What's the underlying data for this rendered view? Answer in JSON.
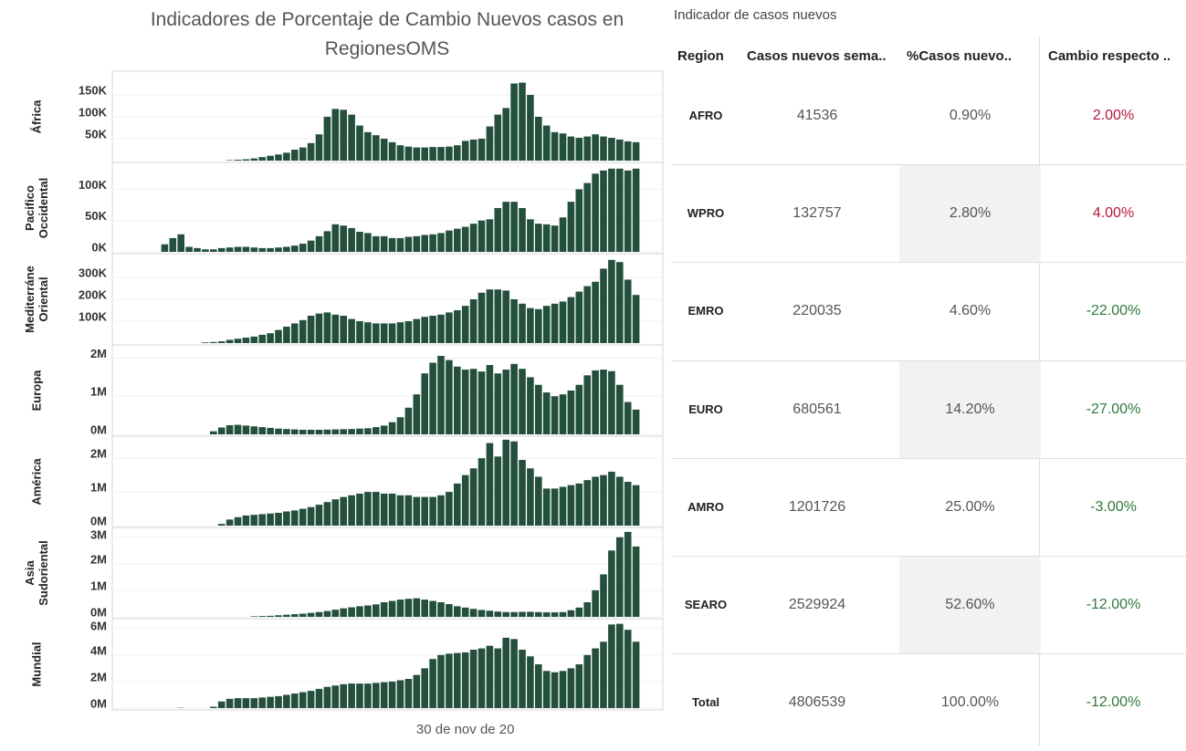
{
  "title": "Indicadores de Porcentaje de Cambio Nuevos casos en RegionesOMS",
  "chart_data": [
    {
      "type": "bar",
      "ylabel": "África",
      "color": "#234f3c",
      "ylim": [
        0,
        200000
      ],
      "yticks": [
        {
          "value": 50000,
          "label": "50K"
        },
        {
          "value": 100000,
          "label": "100K"
        },
        {
          "value": 150000,
          "label": "150K"
        }
      ],
      "values": [
        null,
        null,
        null,
        null,
        null,
        null,
        null,
        null,
        null,
        null,
        null,
        null,
        null,
        null,
        1000,
        2000,
        3000,
        5000,
        8000,
        11000,
        14000,
        18000,
        25000,
        30000,
        40000,
        60000,
        100000,
        118000,
        116000,
        105000,
        80000,
        65000,
        58000,
        50000,
        42000,
        35000,
        32000,
        30000,
        30000,
        31000,
        31000,
        32000,
        35000,
        45000,
        48000,
        50000,
        78000,
        105000,
        120000,
        176000,
        178000,
        150000,
        100000,
        80000,
        65000,
        62000,
        55000,
        52000,
        55000,
        60000,
        55000,
        52000,
        48000,
        44000,
        42000
      ]
    },
    {
      "type": "bar",
      "ylabel": "Pacifico Occidental",
      "color": "#234f3c",
      "ylim": [
        0,
        140000
      ],
      "yticks": [
        {
          "value": 0,
          "label": "0K"
        },
        {
          "value": 50000,
          "label": "50K"
        },
        {
          "value": 100000,
          "label": "100K"
        }
      ],
      "values": [
        null,
        null,
        null,
        null,
        null,
        null,
        12000,
        22000,
        28000,
        8000,
        6000,
        4000,
        4000,
        6000,
        7000,
        8000,
        8000,
        7000,
        6000,
        6000,
        7000,
        8000,
        10000,
        13000,
        18000,
        25000,
        33000,
        44000,
        42000,
        38000,
        32000,
        30000,
        25000,
        25000,
        22000,
        22000,
        24000,
        25000,
        27000,
        28000,
        30000,
        34000,
        37000,
        40000,
        45000,
        50000,
        52000,
        70000,
        80000,
        80000,
        70000,
        52000,
        45000,
        44000,
        42000,
        55000,
        80000,
        100000,
        110000,
        125000,
        130000,
        133000,
        133000,
        130000,
        133000
      ]
    },
    {
      "type": "bar",
      "ylabel": "Mediterráne Oriental",
      "color": "#234f3c",
      "ylim": [
        0,
        400000
      ],
      "yticks": [
        {
          "value": 100000,
          "label": "100K"
        },
        {
          "value": 200000,
          "label": "200K"
        },
        {
          "value": 300000,
          "label": "300K"
        }
      ],
      "values": [
        null,
        null,
        null,
        null,
        null,
        null,
        null,
        null,
        null,
        null,
        null,
        3000,
        5000,
        8000,
        15000,
        20000,
        25000,
        30000,
        38000,
        45000,
        60000,
        75000,
        90000,
        105000,
        125000,
        135000,
        140000,
        130000,
        125000,
        110000,
        100000,
        95000,
        90000,
        90000,
        90000,
        95000,
        100000,
        110000,
        120000,
        125000,
        130000,
        140000,
        150000,
        170000,
        200000,
        230000,
        245000,
        245000,
        240000,
        200000,
        180000,
        160000,
        155000,
        170000,
        180000,
        190000,
        210000,
        235000,
        260000,
        280000,
        340000,
        380000,
        370000,
        290000,
        220000
      ]
    },
    {
      "type": "bar",
      "ylabel": "Europa",
      "color": "#234f3c",
      "ylim": [
        0,
        2300000
      ],
      "yticks": [
        {
          "value": 0,
          "label": "0M"
        },
        {
          "value": 1000000,
          "label": "1M"
        },
        {
          "value": 2000000,
          "label": "2M"
        }
      ],
      "values": [
        null,
        null,
        null,
        null,
        null,
        null,
        null,
        null,
        null,
        null,
        null,
        null,
        80000,
        180000,
        240000,
        250000,
        230000,
        210000,
        190000,
        170000,
        150000,
        140000,
        130000,
        120000,
        120000,
        120000,
        125000,
        130000,
        135000,
        140000,
        150000,
        160000,
        190000,
        230000,
        320000,
        450000,
        700000,
        1050000,
        1600000,
        1880000,
        2060000,
        1950000,
        1780000,
        1700000,
        1720000,
        1650000,
        1820000,
        1600000,
        1700000,
        1850000,
        1720000,
        1500000,
        1300000,
        1100000,
        1000000,
        1050000,
        1150000,
        1300000,
        1550000,
        1680000,
        1700000,
        1660000,
        1300000,
        850000,
        650000
      ]
    },
    {
      "type": "bar",
      "ylabel": "América",
      "color": "#234f3c",
      "ylim": [
        0,
        2600000
      ],
      "yticks": [
        {
          "value": 0,
          "label": "0M"
        },
        {
          "value": 1000000,
          "label": "1M"
        },
        {
          "value": 2000000,
          "label": "2M"
        }
      ],
      "values": [
        null,
        null,
        null,
        null,
        null,
        null,
        null,
        null,
        null,
        null,
        null,
        null,
        null,
        50000,
        180000,
        250000,
        300000,
        320000,
        340000,
        360000,
        380000,
        420000,
        450000,
        500000,
        550000,
        620000,
        700000,
        780000,
        850000,
        900000,
        950000,
        1000000,
        1000000,
        950000,
        950000,
        900000,
        900000,
        850000,
        850000,
        850000,
        900000,
        1000000,
        1250000,
        1500000,
        1700000,
        2000000,
        2450000,
        2050000,
        2550000,
        2500000,
        1950000,
        1700000,
        1450000,
        1100000,
        1100000,
        1150000,
        1200000,
        1250000,
        1350000,
        1450000,
        1500000,
        1600000,
        1450000,
        1300000,
        1200000
      ]
    },
    {
      "type": "bar",
      "ylabel": "Asia Sudoriental",
      "color": "#234f3c",
      "ylim": [
        0,
        3300000
      ],
      "yticks": [
        {
          "value": 0,
          "label": "0M"
        },
        {
          "value": 1000000,
          "label": "1M"
        },
        {
          "value": 2000000,
          "label": "2M"
        },
        {
          "value": 3000000,
          "label": "3M"
        }
      ],
      "values": [
        null,
        null,
        null,
        null,
        null,
        null,
        null,
        null,
        null,
        null,
        null,
        null,
        null,
        null,
        null,
        null,
        null,
        20000,
        30000,
        40000,
        60000,
        80000,
        100000,
        120000,
        150000,
        180000,
        220000,
        270000,
        320000,
        360000,
        400000,
        430000,
        470000,
        550000,
        600000,
        650000,
        680000,
        700000,
        650000,
        600000,
        550000,
        480000,
        400000,
        350000,
        300000,
        260000,
        230000,
        200000,
        180000,
        180000,
        190000,
        190000,
        180000,
        170000,
        170000,
        180000,
        250000,
        350000,
        550000,
        1000000,
        1600000,
        2500000,
        3000000,
        3200000,
        2650000
      ]
    },
    {
      "type": "bar",
      "ylabel": "Mundial",
      "color": "#234f3c",
      "ylim": [
        0,
        6600000
      ],
      "yticks": [
        {
          "value": 0,
          "label": "0M"
        },
        {
          "value": 2000000,
          "label": "2M"
        },
        {
          "value": 4000000,
          "label": "4M"
        },
        {
          "value": 6000000,
          "label": "6M"
        }
      ],
      "categories": [
        null,
        null,
        null,
        null,
        null,
        null,
        null,
        null,
        null,
        null,
        null,
        null,
        null,
        null,
        null,
        null,
        null,
        null,
        null,
        null,
        null,
        null,
        null,
        null,
        null,
        null,
        null,
        null,
        null,
        null,
        null,
        null,
        null,
        null,
        null,
        null,
        null,
        null,
        null,
        null,
        null,
        null,
        null,
        "30 de nov de 20",
        null,
        null,
        null,
        null,
        null,
        null,
        null,
        null,
        null,
        null,
        null,
        null,
        null,
        null,
        null,
        null,
        null,
        null,
        null,
        null,
        null
      ],
      "values": [
        null,
        null,
        null,
        null,
        null,
        null,
        null,
        null,
        20000,
        null,
        null,
        null,
        100000,
        500000,
        700000,
        750000,
        750000,
        750000,
        800000,
        850000,
        900000,
        1000000,
        1100000,
        1200000,
        1300000,
        1450000,
        1600000,
        1700000,
        1800000,
        1850000,
        1850000,
        1850000,
        1900000,
        1950000,
        2000000,
        2100000,
        2200000,
        2500000,
        3000000,
        3700000,
        4000000,
        4100000,
        4150000,
        4200000,
        4400000,
        4500000,
        4700000,
        4500000,
        5300000,
        5200000,
        4400000,
        3900000,
        3300000,
        2800000,
        2700000,
        2800000,
        3000000,
        3300000,
        4000000,
        4500000,
        5000000,
        6300000,
        6350000,
        5900000,
        5000000
      ]
    }
  ],
  "table": {
    "title": "Indicador de casos nuevos",
    "positive_color": "#b5163d",
    "negative_color": "#2f7a3a",
    "columns": [
      "Region",
      "Casos nuevos sema..",
      "%Casos nuevo..",
      "Cambio respecto .."
    ],
    "rows": [
      [
        "AFRO",
        "41536",
        "0.90%",
        "2.00%"
      ],
      [
        "WPRO",
        "132757",
        "2.80%",
        "4.00%"
      ],
      [
        "EMRO",
        "220035",
        "4.60%",
        "-22.00%"
      ],
      [
        "EURO",
        "680561",
        "14.20%",
        "-27.00%"
      ],
      [
        "AMRO",
        "1201726",
        "25.00%",
        "-3.00%"
      ],
      [
        "SEARO",
        "2529924",
        "52.60%",
        "-12.00%"
      ],
      [
        "Total",
        "4806539",
        "100.00%",
        "-12.00%"
      ]
    ]
  }
}
